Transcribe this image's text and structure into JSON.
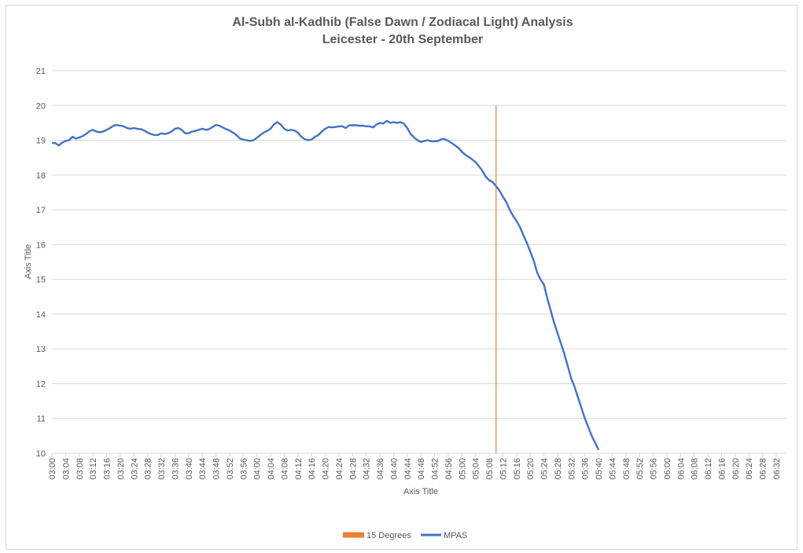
{
  "chart_data": {
    "type": "line",
    "title": "Al-Subh al-Kadhib (False Dawn / Zodiacal Light) Analysis",
    "subtitle": "Leicester - 20th September",
    "xlabel": "Axis Title",
    "ylabel": "Axis Title",
    "ylim": [
      10,
      21
    ],
    "yticks": [
      "10",
      "11",
      "12",
      "13",
      "14",
      "15",
      "16",
      "17",
      "18",
      "19",
      "20",
      "21"
    ],
    "xticks": [
      "03:00",
      "03:04",
      "03:08",
      "03:12",
      "03:16",
      "03:20",
      "03:24",
      "03:28",
      "03:32",
      "03:36",
      "03:40",
      "03:44",
      "03:48",
      "03:52",
      "03:56",
      "04:00",
      "04:04",
      "04:08",
      "04:12",
      "04:16",
      "04:20",
      "04:24",
      "04:28",
      "04:32",
      "04:36",
      "04:40",
      "04:44",
      "04:48",
      "04:52",
      "04:56",
      "05:00",
      "05:04",
      "05:08",
      "05:12",
      "05:16",
      "05:20",
      "05:24",
      "05:28",
      "05:32",
      "05:36",
      "05:40",
      "05:44",
      "05:48",
      "05:52",
      "05:56",
      "06:00",
      "06:04",
      "06:08",
      "06:12",
      "06:16",
      "06:20",
      "06:24",
      "06:28",
      "06:32"
    ],
    "grid": true,
    "legend_position": "bottom",
    "marker": {
      "name": "15 Degrees",
      "x": "05:10",
      "color": "#ed7d31"
    },
    "series": [
      {
        "name": "MPAS",
        "color": "#4472c4",
        "x_start": "03:00",
        "x_step_minutes": 1,
        "values": [
          18.92,
          18.92,
          18.85,
          18.93,
          18.98,
          19.0,
          19.1,
          19.05,
          19.08,
          19.12,
          19.18,
          19.26,
          19.3,
          19.25,
          19.23,
          19.25,
          19.3,
          19.35,
          19.42,
          19.44,
          19.42,
          19.4,
          19.35,
          19.33,
          19.35,
          19.33,
          19.32,
          19.28,
          19.22,
          19.18,
          19.15,
          19.15,
          19.2,
          19.18,
          19.2,
          19.25,
          19.33,
          19.35,
          19.3,
          19.2,
          19.2,
          19.25,
          19.27,
          19.3,
          19.33,
          19.3,
          19.32,
          19.38,
          19.44,
          19.42,
          19.37,
          19.32,
          19.28,
          19.22,
          19.15,
          19.05,
          19.02,
          19.0,
          18.98,
          19.0,
          19.07,
          19.15,
          19.22,
          19.27,
          19.33,
          19.46,
          19.52,
          19.45,
          19.33,
          19.28,
          19.3,
          19.28,
          19.22,
          19.1,
          19.03,
          19.0,
          19.02,
          19.1,
          19.15,
          19.25,
          19.33,
          19.38,
          19.37,
          19.38,
          19.4,
          19.4,
          19.35,
          19.43,
          19.43,
          19.43,
          19.42,
          19.42,
          19.4,
          19.4,
          19.37,
          19.45,
          19.5,
          19.48,
          19.56,
          19.5,
          19.52,
          19.5,
          19.52,
          19.48,
          19.35,
          19.18,
          19.08,
          19.0,
          18.95,
          18.98,
          19.0,
          18.97,
          18.97,
          18.98,
          19.03,
          19.03,
          18.98,
          18.92,
          18.85,
          18.78,
          18.67,
          18.58,
          18.52,
          18.45,
          18.37,
          18.25,
          18.12,
          17.95,
          17.85,
          17.8,
          17.68,
          17.55,
          17.38,
          17.22,
          17.0,
          16.82,
          16.68,
          16.5,
          16.27,
          16.05,
          15.8,
          15.55,
          15.2,
          15.0,
          14.85,
          14.45,
          14.1,
          13.75,
          13.45,
          13.15,
          12.85,
          12.5,
          12.15,
          11.9,
          11.6,
          11.3,
          11.0,
          10.75,
          10.5,
          10.3,
          10.1
        ]
      }
    ]
  }
}
